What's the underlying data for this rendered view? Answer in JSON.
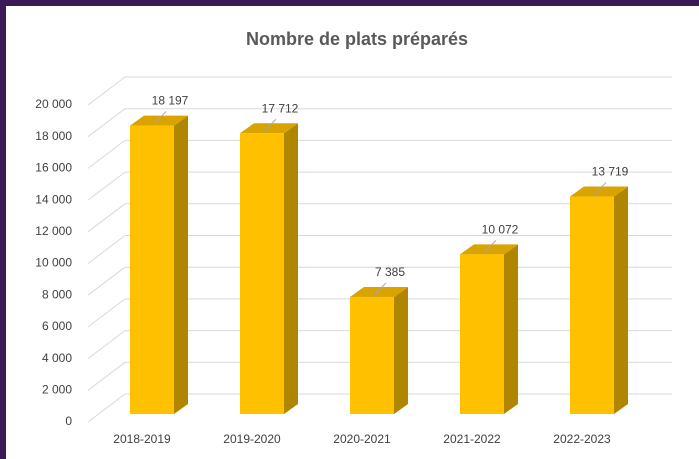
{
  "chart_data": {
    "type": "bar3d",
    "title": "Nombre de plats préparés",
    "categories": [
      "2018-2019",
      "2019-2020",
      "2020-2021",
      "2021-2022",
      "2022-2023"
    ],
    "values": [
      18197,
      17712,
      7385,
      10072,
      13719
    ],
    "value_labels": [
      "18 197",
      "17 712",
      "7 385",
      "10 072",
      "13 719"
    ],
    "color": "#ffc000",
    "ylim": [
      0,
      20000
    ],
    "yticks": [
      0,
      {
        "value": 2000,
        "label": "2 000"
      },
      {
        "value": 4000,
        "label": "4 000"
      },
      {
        "value": 6000,
        "label": "6 000"
      },
      {
        "value": 8000,
        "label": "8 000"
      },
      {
        "value": 10000,
        "label": "10 000"
      },
      {
        "value": 12000,
        "label": "12 000"
      },
      {
        "value": 14000,
        "label": "14 000"
      },
      {
        "value": 16000,
        "label": "16 000"
      },
      {
        "value": 18000,
        "label": "18 000"
      },
      {
        "value": 20000,
        "label": "20 000"
      }
    ],
    "grid": true
  }
}
